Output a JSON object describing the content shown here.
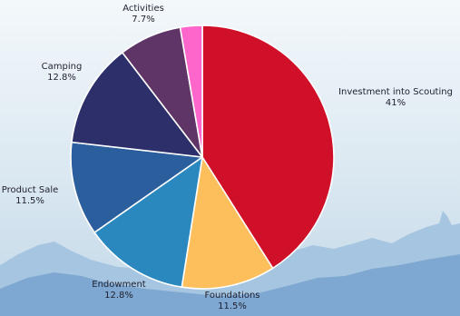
{
  "chart_data": {
    "type": "pie",
    "start_angle_deg": 0,
    "direction": "clockwise",
    "slices": [
      {
        "label": "Investment into Scouting",
        "value": 41,
        "value_text": "41%",
        "color": "#cf1028"
      },
      {
        "label": "Foundations",
        "value": 11.5,
        "value_text": "11.5%",
        "color": "#fdbf5c"
      },
      {
        "label": "Endowment",
        "value": 12.8,
        "value_text": "12.8%",
        "color": "#2a88bf"
      },
      {
        "label": "Product Sale",
        "value": 11.5,
        "value_text": "11.5%",
        "color": "#2b5e9c"
      },
      {
        "label": "Camping",
        "value": 12.8,
        "value_text": "12.8%",
        "color": "#2c2f69"
      },
      {
        "label": "Activities",
        "value": 7.7,
        "value_text": "7.7%",
        "color": "#5e3566"
      },
      {
        "label": "",
        "value": 2.7,
        "value_text": "",
        "color": "#ff66cc"
      }
    ]
  },
  "background": {
    "sky_top": "#f3f8fb",
    "sky_mid": "#dbe8f1",
    "sky_bottom": "#c2d8e8",
    "mountain_back": "#a6c5e0",
    "mountain_front": "#7ea8d2"
  }
}
